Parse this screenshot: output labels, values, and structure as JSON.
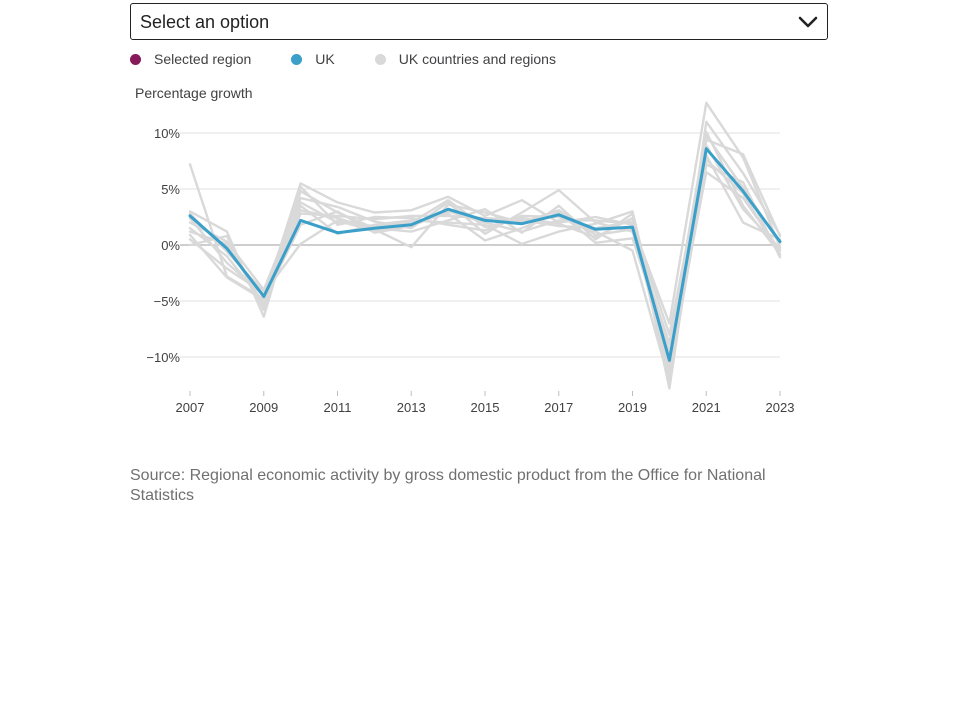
{
  "select": {
    "value": "Select an option",
    "icon": "chevron-down-icon"
  },
  "legend": [
    {
      "label": "Selected region",
      "color": "#871a5b"
    },
    {
      "label": "UK",
      "color": "#206095"
    },
    {
      "label": "UK countries and regions",
      "color": "#d9d9d9"
    }
  ],
  "source": "Source: Regional economic activity by gross domestic product from the Office for National Statistics",
  "chart_data": {
    "type": "line",
    "ylabel": "Percentage growth",
    "xlabel": "",
    "x": [
      2007,
      2008,
      2009,
      2010,
      2011,
      2012,
      2013,
      2014,
      2015,
      2016,
      2017,
      2018,
      2019,
      2020,
      2021,
      2022,
      2023
    ],
    "x_ticks": [
      "2007",
      "2009",
      "2011",
      "2013",
      "2015",
      "2017",
      "2019",
      "2021",
      "2023"
    ],
    "ylim": [
      -13.5,
      11
    ],
    "y_ticks": [
      {
        "value": 10,
        "label": "10%"
      },
      {
        "value": 5,
        "label": "5%"
      },
      {
        "value": 0,
        "label": "0%"
      },
      {
        "value": -5,
        "label": "−5%"
      },
      {
        "value": -10,
        "label": "−10%"
      }
    ],
    "grid": true,
    "legend_position": "top-left",
    "colors": {
      "uk": "#3a9fc9",
      "regions": "#d9d9d9",
      "zero_line": "#bdbdbd",
      "grid": "#e2e2e2"
    },
    "series": [
      {
        "name": "UK",
        "values": [
          2.6,
          -0.3,
          -4.6,
          2.2,
          1.1,
          1.5,
          1.8,
          3.2,
          2.2,
          1.9,
          2.7,
          1.4,
          1.6,
          -10.3,
          8.6,
          4.8,
          0.3
        ]
      },
      {
        "name": "UK countries and regions",
        "values": [
          7.2,
          -2.8,
          -4.8,
          5.5,
          3.8,
          2.9,
          3.1,
          4.3,
          2.6,
          4.0,
          2.0,
          2.5,
          1.8,
          -7.0,
          12.7,
          7.8,
          -0.2
        ]
      },
      {
        "name": "UK countries and regions",
        "values": [
          3.0,
          1.2,
          -6.4,
          4.8,
          2.9,
          1.5,
          1.2,
          2.2,
          3.2,
          1.1,
          3.5,
          0.5,
          2.8,
          -12.8,
          9.4,
          8.1,
          0.8
        ]
      },
      {
        "name": "UK countries and regions",
        "values": [
          2.0,
          0.3,
          -4.0,
          4.2,
          3.4,
          2.1,
          1.5,
          3.8,
          1.0,
          2.9,
          4.9,
          2.0,
          1.2,
          -8.8,
          10.1,
          3.5,
          -0.8
        ]
      },
      {
        "name": "UK countries and regions",
        "values": [
          1.5,
          -1.0,
          -5.1,
          2.8,
          2.6,
          2.3,
          2.6,
          2.6,
          2.4,
          2.2,
          1.7,
          1.5,
          2.1,
          -11.8,
          7.2,
          5.6,
          -1.1
        ]
      },
      {
        "name": "UK countries and regions",
        "values": [
          0.5,
          -2.1,
          -4.3,
          0.1,
          2.2,
          1.2,
          1.9,
          2.8,
          0.4,
          1.5,
          2.9,
          0.2,
          0.6,
          -9.5,
          8.0,
          2.0,
          0.5
        ]
      },
      {
        "name": "UK countries and regions",
        "values": [
          0.0,
          0.8,
          -5.8,
          3.5,
          1.0,
          1.8,
          2.2,
          2.0,
          1.8,
          0.1,
          1.2,
          1.9,
          3.0,
          -10.8,
          6.5,
          4.2,
          -0.5
        ]
      },
      {
        "name": "UK countries and regions",
        "values": [
          2.4,
          -1.6,
          -4.5,
          3.1,
          2.4,
          1.4,
          -0.2,
          3.6,
          2.9,
          2.0,
          3.1,
          0.9,
          1.4,
          -11.2,
          9.8,
          5.1,
          0.1
        ]
      },
      {
        "name": "UK countries and regions",
        "values": [
          1.2,
          0.1,
          -5.4,
          5.2,
          1.8,
          2.5,
          2.4,
          1.8,
          1.3,
          2.6,
          2.5,
          1.2,
          -0.5,
          -12.2,
          11.0,
          6.4,
          0.9
        ]
      },
      {
        "name": "UK countries and regions",
        "values": [
          0.9,
          -2.9,
          -4.9,
          1.8,
          3.0,
          1.1,
          1.7,
          3.0,
          2.0,
          1.2,
          2.2,
          2.2,
          1.9,
          -8.0,
          8.9,
          3.2,
          -0.3
        ]
      },
      {
        "name": "UK countries and regions",
        "values": [
          2.8,
          -0.6,
          -4.2,
          3.8,
          2.0,
          1.7,
          2.0,
          4.0,
          1.6,
          2.4,
          1.9,
          0.7,
          2.4,
          -10.0,
          7.6,
          4.6,
          -0.9
        ]
      }
    ]
  }
}
